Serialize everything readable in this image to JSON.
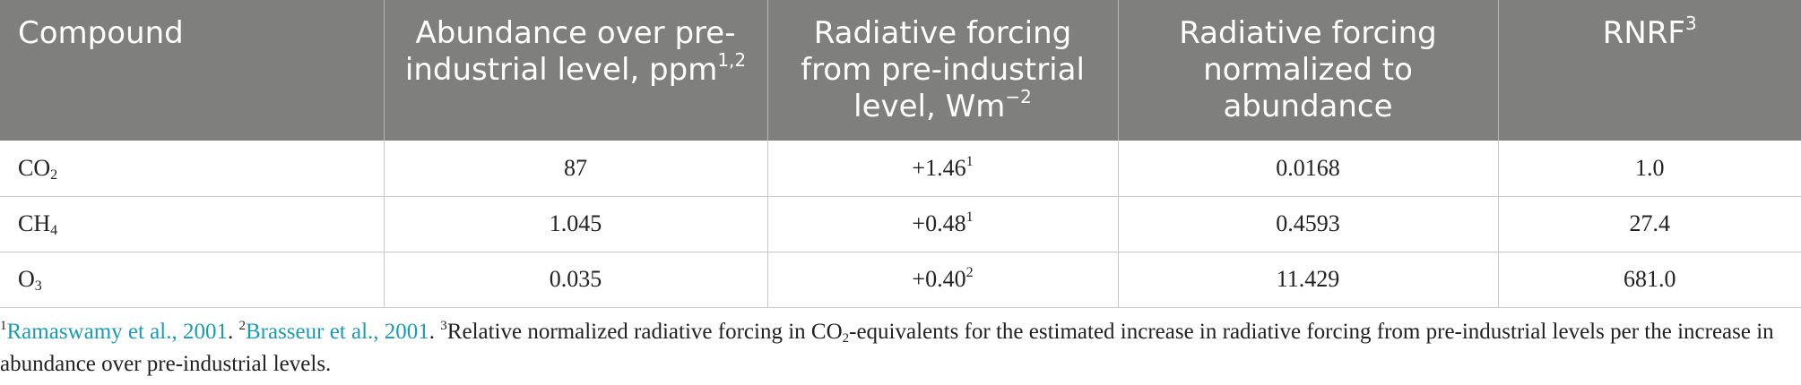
{
  "table": {
    "headers": [
      {
        "text": "Compound",
        "sup": ""
      },
      {
        "text": "Abundance over pre-industrial level, ppm",
        "sup": "1,2"
      },
      {
        "text": "Radiative forcing from pre-industrial level, Wm",
        "sup": "−2"
      },
      {
        "text": "Radiative forcing normalized to abundance",
        "sup": ""
      },
      {
        "text": "RNRF",
        "sup": "3"
      }
    ],
    "rows": [
      {
        "compound": "CO",
        "compound_sub": "2",
        "abundance": "87",
        "forcing": "+1.46",
        "forcing_sup": "1",
        "normalized": "0.0168",
        "rnrf": "1.0"
      },
      {
        "compound": "CH",
        "compound_sub": "4",
        "abundance": "1.045",
        "forcing": "+0.48",
        "forcing_sup": "1",
        "normalized": "0.4593",
        "rnrf": "27.4"
      },
      {
        "compound": "O",
        "compound_sub": "3",
        "abundance": "0.035",
        "forcing": "+0.40",
        "forcing_sup": "2",
        "normalized": "11.429",
        "rnrf": "681.0"
      }
    ]
  },
  "footnote": {
    "n1": "1",
    "ref1": "Ramaswamy et al., 2001",
    "sep1": ". ",
    "n2": "2",
    "ref2": "Brasseur et al., 2001",
    "sep2": ". ",
    "n3": "3",
    "text_a": "Relative normalized radiative forcing in CO",
    "text_sub": "2",
    "text_b": "-equivalents for the estimated increase in radiative forcing from pre-industrial levels per the increase in abundance over pre-industrial levels."
  },
  "colors": {
    "header_bg": "#7f7f7e",
    "header_text": "#ffffff",
    "link": "#1a9bb5"
  }
}
